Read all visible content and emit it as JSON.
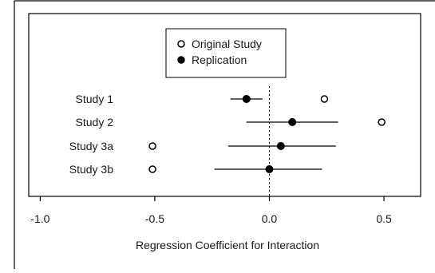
{
  "chart_data": {
    "type": "scatter",
    "title": "",
    "xlabel": "Regression Coefficient for Interaction",
    "ylabel": "",
    "xlim": [
      -1.05,
      0.66
    ],
    "xticks": [
      {
        "value": -1.0,
        "label": "-1.0"
      },
      {
        "value": -0.5,
        "label": "-0.5"
      },
      {
        "value": 0.0,
        "label": "0.0"
      },
      {
        "value": 0.5,
        "label": "0.5"
      }
    ],
    "reference_line": {
      "x": 0,
      "style": "dotted"
    },
    "categories": [
      "Study 1",
      "Study 2",
      "Study 3a",
      "Study 3b"
    ],
    "series": [
      {
        "name": "Original Study",
        "marker": "open-circle",
        "values": [
          0.24,
          0.49,
          -0.51,
          -0.51
        ]
      },
      {
        "name": "Replication",
        "marker": "filled-circle",
        "values": [
          -0.1,
          0.1,
          0.05,
          0.0
        ],
        "ci": [
          [
            -0.17,
            -0.03
          ],
          [
            -0.1,
            0.3
          ],
          [
            -0.18,
            0.29
          ],
          [
            -0.24,
            0.23
          ]
        ]
      }
    ],
    "legend_position": "top-center",
    "grid": false
  }
}
